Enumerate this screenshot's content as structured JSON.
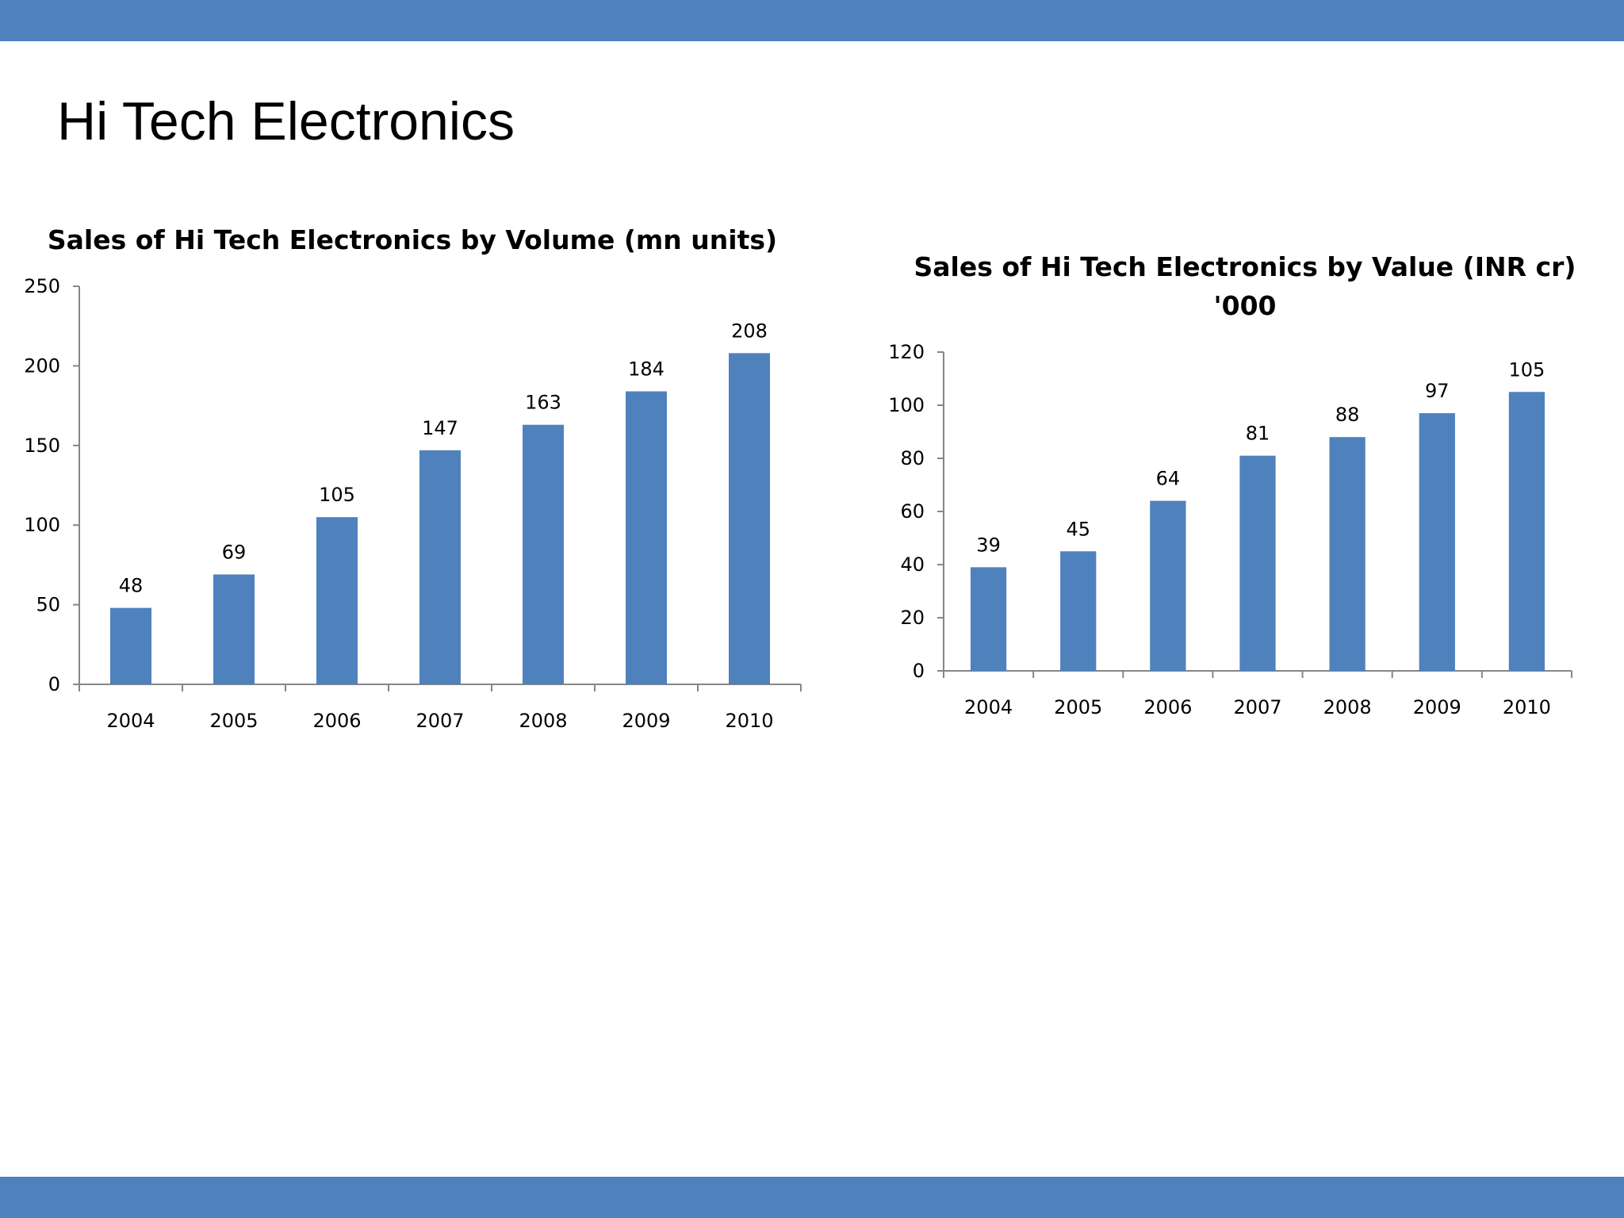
{
  "slide": {
    "title": "Hi Tech Electronics"
  },
  "colors": {
    "band": "#4f81bd",
    "bar": "#4f81bd",
    "axis": "#868686"
  },
  "chart_data": [
    {
      "type": "bar",
      "title": "Sales of Hi Tech Electronics by Volume (mn units)",
      "title_lines": [
        "Sales of Hi Tech Electronics by Volume (mn units)"
      ],
      "categories": [
        "2004",
        "2005",
        "2006",
        "2007",
        "2008",
        "2009",
        "2010"
      ],
      "series": [
        {
          "values": [
            48,
            69,
            105,
            147,
            163,
            184,
            208
          ]
        }
      ],
      "data_labels": [
        "48",
        "69",
        "105",
        "147",
        "163",
        "184",
        "208"
      ],
      "yticks": [
        0,
        50,
        100,
        150,
        200,
        250
      ],
      "ylim": [
        0,
        250
      ],
      "grid": false,
      "legend": "none",
      "xlabel": "",
      "ylabel": ""
    },
    {
      "type": "bar",
      "title": "Sales of Hi Tech Electronics by Value (INR cr) '000",
      "title_lines": [
        "Sales of Hi Tech Electronics by Value (INR cr)",
        "'000"
      ],
      "categories": [
        "2004",
        "2005",
        "2006",
        "2007",
        "2008",
        "2009",
        "2010"
      ],
      "series": [
        {
          "values": [
            39,
            45,
            64,
            81,
            88,
            97,
            105
          ]
        }
      ],
      "data_labels": [
        "39",
        "45",
        "64",
        "81",
        "88",
        "97",
        "105"
      ],
      "yticks": [
        0,
        20,
        40,
        60,
        80,
        100,
        120
      ],
      "ylim": [
        0,
        120
      ],
      "grid": false,
      "legend": "none",
      "xlabel": "",
      "ylabel": ""
    }
  ]
}
